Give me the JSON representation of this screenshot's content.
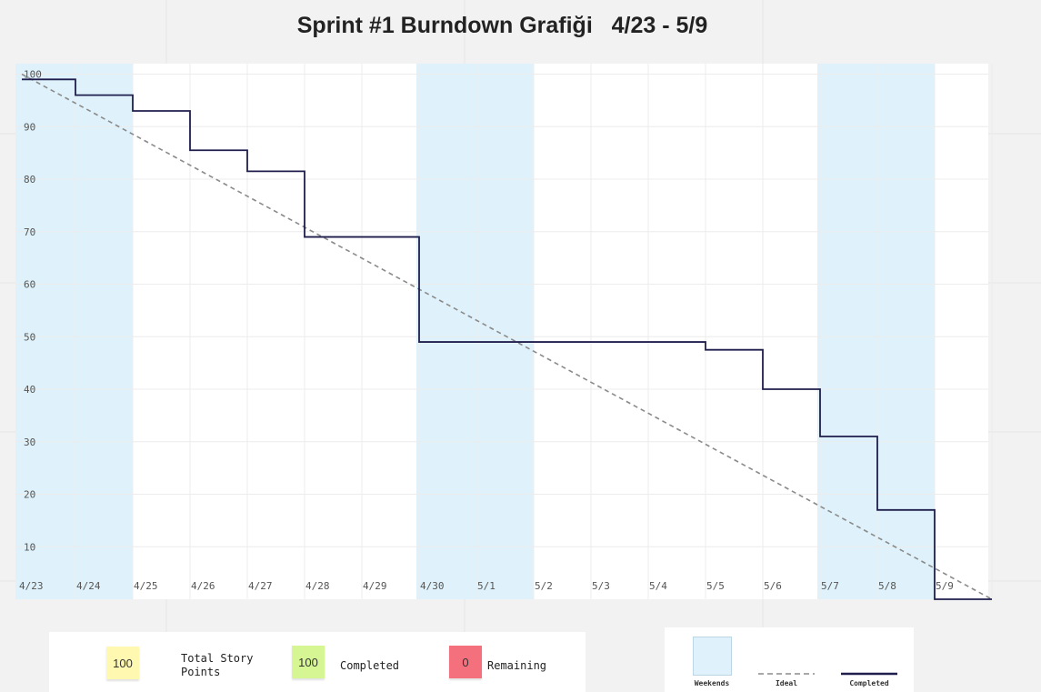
{
  "chart_data": {
    "type": "line",
    "title": "Sprint #1 Burndown Grafiği   4/23 - 5/9",
    "categories": [
      "4/23",
      "4/24",
      "4/25",
      "4/26",
      "4/27",
      "4/28",
      "4/29",
      "4/30",
      "5/1",
      "5/2",
      "5/3",
      "5/4",
      "5/5",
      "5/6",
      "5/7",
      "5/8",
      "5/9"
    ],
    "yticks": [
      10,
      20,
      30,
      40,
      50,
      60,
      70,
      80,
      90,
      100
    ],
    "ylim": [
      0,
      102
    ],
    "weekend_ranges": [
      [
        "4/23",
        "4/24"
      ],
      [
        "4/30",
        "5/1"
      ],
      [
        "5/7",
        "5/8"
      ]
    ],
    "series": [
      {
        "name": "Ideal",
        "style": "dashed",
        "color": "#8a8a8a",
        "values": [
          100,
          0
        ],
        "x": [
          "4/23",
          "end"
        ]
      },
      {
        "name": "Completed",
        "style": "step",
        "color": "#1f1e4d",
        "values": [
          99,
          96,
          93,
          85.5,
          81.5,
          69,
          69,
          49,
          49,
          49,
          49,
          49,
          47.5,
          40,
          31,
          17,
          0
        ]
      }
    ],
    "grid": true
  },
  "summary": {
    "total_value": "100",
    "total_label": "Total Story Points",
    "completed_value": "100",
    "completed_label": "Completed",
    "remaining_value": "0",
    "remaining_label": "Remaining",
    "colors": {
      "total": "#fff8b0",
      "completed": "#d5f692",
      "remaining": "#f4707c"
    }
  },
  "legend": {
    "weekends": "Weekends",
    "ideal": "Ideal",
    "completed": "Completed",
    "weekend_color": "#dff2fb"
  }
}
